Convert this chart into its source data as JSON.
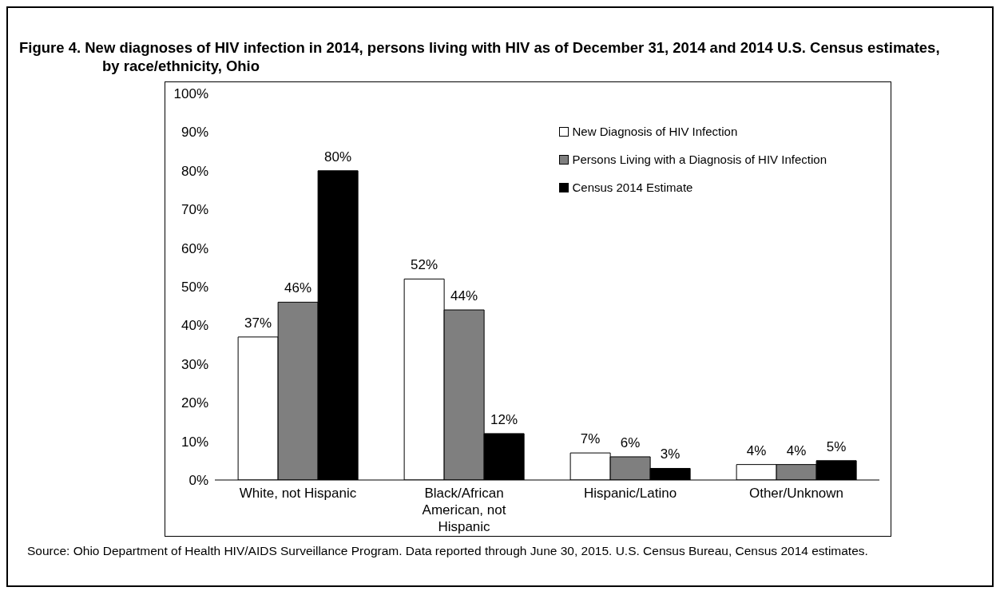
{
  "chart_data": {
    "type": "bar",
    "title": "Figure 4. New diagnoses of HIV infection in 2014, persons living with HIV as of December 31, 2014 and 2014 U.S. Census estimates, by race/ethnicity, Ohio",
    "categories": [
      "White, not Hispanic",
      "Black/African American, not Hispanic",
      "Hispanic/Latino",
      "Other/Unknown"
    ],
    "series": [
      {
        "name": "New Diagnosis of HIV Infection",
        "color": "#ffffff",
        "values": [
          37,
          52,
          7,
          4
        ],
        "value_labels": [
          "37%",
          "52%",
          "7%",
          "4%"
        ]
      },
      {
        "name": "Persons Living with a Diagnosis of HIV Infection",
        "color": "#7f7f7f",
        "values": [
          46,
          44,
          6,
          4
        ],
        "value_labels": [
          "46%",
          "44%",
          "6%",
          "4%"
        ]
      },
      {
        "name": "Census 2014 Estimate",
        "color": "#000000",
        "values": [
          80,
          12,
          3,
          5
        ],
        "value_labels": [
          "80%",
          "12%",
          "3%",
          "5%"
        ]
      }
    ],
    "ylim": [
      0,
      100
    ],
    "yticks": [
      {
        "value": 0,
        "label": "0%"
      },
      {
        "value": 10,
        "label": "10%"
      },
      {
        "value": 20,
        "label": "20%"
      },
      {
        "value": 30,
        "label": "30%"
      },
      {
        "value": 40,
        "label": "40%"
      },
      {
        "value": 50,
        "label": "50%"
      },
      {
        "value": 60,
        "label": "60%"
      },
      {
        "value": 70,
        "label": "70%"
      },
      {
        "value": 80,
        "label": "80%"
      },
      {
        "value": 90,
        "label": "90%"
      },
      {
        "value": 100,
        "label": "100%"
      }
    ],
    "grid": false,
    "legend": "top right",
    "annotations": [
      "Source:  Ohio Department of Health HIV/AIDS Surveillance Program.  Data reported through June 30, 2015.   U.S. Census Bureau, Census 2014 estimates."
    ]
  }
}
